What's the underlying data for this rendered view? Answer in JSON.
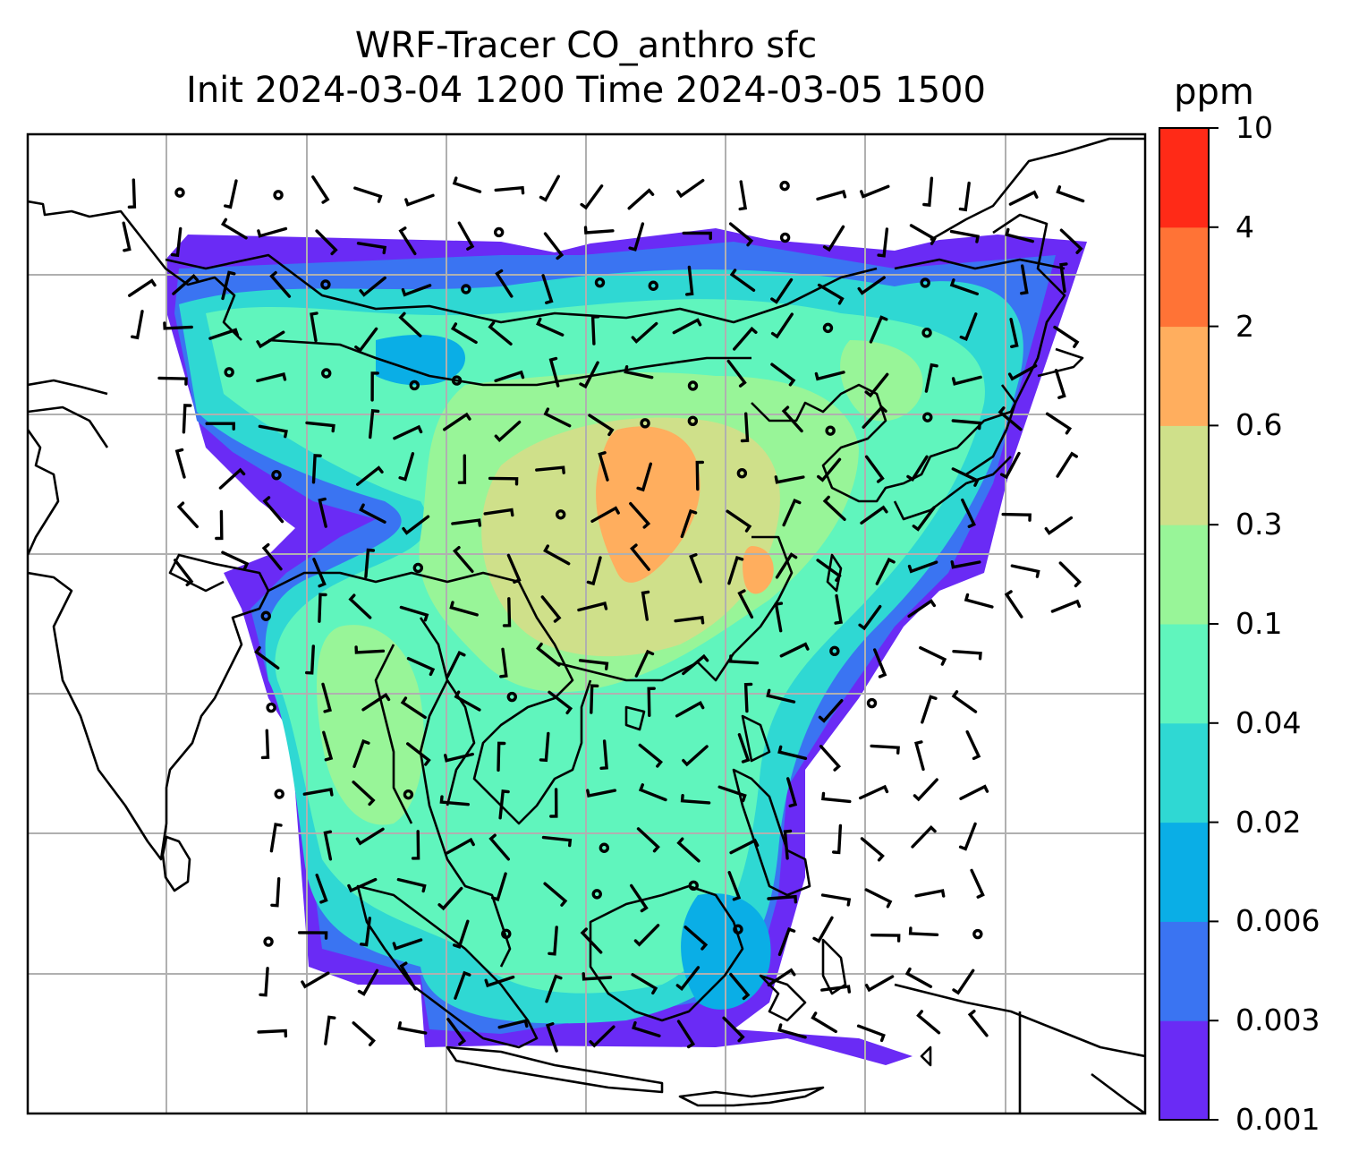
{
  "title": {
    "line1": "WRF-Tracer CO_anthro sfc",
    "line2": "Init 2024-03-04 1200 Time 2024-03-05 1500"
  },
  "colorbar": {
    "unit": "ppm",
    "ticks": [
      "0.001",
      "0.003",
      "0.006",
      "0.02",
      "0.04",
      "0.1",
      "0.3",
      "0.6",
      "2",
      "4",
      "10"
    ],
    "colors": [
      "#6a2bf5",
      "#3a74f2",
      "#0aaee6",
      "#2fd8d3",
      "#60f5bd",
      "#98f598",
      "#cfe08a",
      "#ffae5e",
      "#ff7336",
      "#ff2a17"
    ]
  },
  "map": {
    "gridlines": true,
    "frame_color": "#000000",
    "grid_color": "#b0b0b0",
    "coastline_color": "#000000",
    "overlay": "wind barbs and calm-wind circles"
  }
}
